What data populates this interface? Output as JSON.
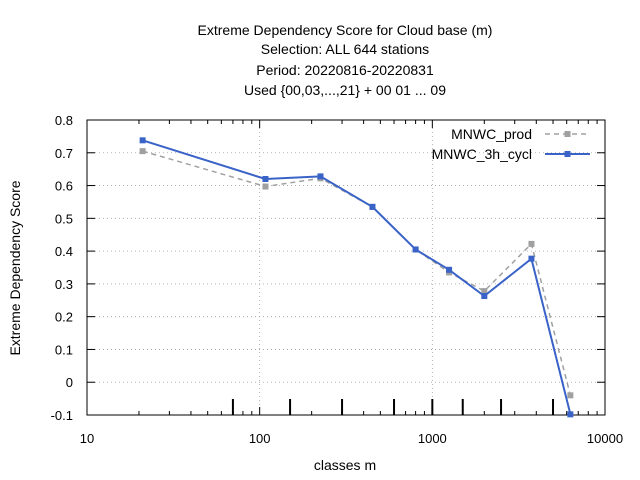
{
  "chart_data": {
    "type": "line",
    "title_lines": [
      "Extreme Dependency Score  for Cloud base (m)",
      "Selection: ALL    644 stations",
      "Period: 20220816-20220831",
      "Used {00,03,...,21} + 00 01 ... 09"
    ],
    "xlabel": "classes m",
    "ylabel": "Extreme Dependency Score",
    "x_scale": "log",
    "xlim": [
      10,
      10000
    ],
    "ylim": [
      -0.1,
      0.8
    ],
    "x_ticks": [
      10,
      100,
      1000,
      10000
    ],
    "x_tick_labels": [
      "10",
      "100",
      "1000",
      "10000"
    ],
    "y_ticks": [
      -0.1,
      0,
      0.1,
      0.2,
      0.3,
      0.4,
      0.5,
      0.6,
      0.7,
      0.8
    ],
    "y_tick_labels": [
      "-0.1",
      "0",
      "0.1",
      "0.2",
      "0.3",
      "0.4",
      "0.5",
      "0.6",
      "0.7",
      "0.8"
    ],
    "grid": true,
    "legend_position": "top-right",
    "class_limit_marks": [
      70,
      150,
      300,
      600,
      1000,
      1500,
      2500,
      5000
    ],
    "series": [
      {
        "name": "MNWC_prod",
        "color": "#a0a0a0",
        "dash": true,
        "x": [
          21,
          108,
          225,
          450,
          800,
          1250,
          2000,
          3750,
          6300
        ],
        "y": [
          0.705,
          0.597,
          0.622,
          0.535,
          0.405,
          0.335,
          0.278,
          0.422,
          -0.04
        ]
      },
      {
        "name": "MNWC_3h_cycl",
        "color": "#3a63c8",
        "dash": false,
        "x": [
          21,
          108,
          225,
          450,
          800,
          1250,
          2000,
          3750,
          6300
        ],
        "y": [
          0.738,
          0.62,
          0.628,
          0.535,
          0.405,
          0.343,
          0.263,
          0.377,
          -0.098
        ]
      }
    ]
  }
}
